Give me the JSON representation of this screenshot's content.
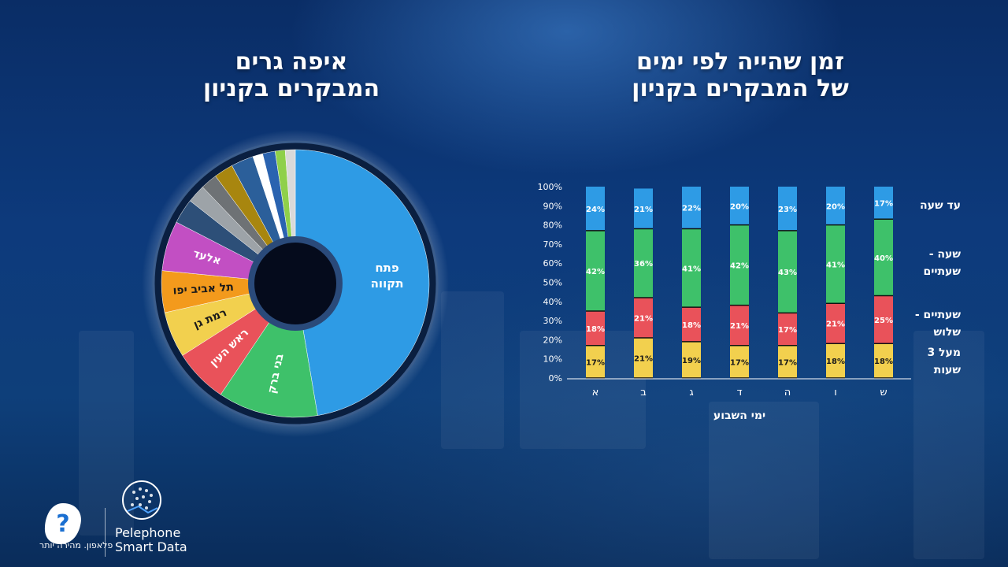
{
  "left_panel": {
    "title_line1": "איפה גרים",
    "title_line2": "המבקרים בקניון"
  },
  "right_panel": {
    "title_line1": "זמן שהייה לפי ימים",
    "title_line2": "של המבקרים בקניון"
  },
  "branding": {
    "tagline": "פלאפון. מהירה יותר",
    "sd_line1": "Pelephone",
    "sd_line2": "Smart Data"
  },
  "chart_data": [
    {
      "type": "pie",
      "title": "איפה גרים המבקרים בקניון",
      "donut": true,
      "slices": [
        {
          "label": "פתח תקווה",
          "value": 47,
          "color": "#2e9be5"
        },
        {
          "label": "בני ברק",
          "value": 12,
          "color": "#3ec16a"
        },
        {
          "label": "ראש העין",
          "value": 6.5,
          "color": "#e9525a"
        },
        {
          "label": "רמת גן",
          "value": 5.5,
          "color": "#f2d04e"
        },
        {
          "label": "תל אביב יפו",
          "value": 5,
          "color": "#f39a1c"
        },
        {
          "label": "אלעד",
          "value": 6,
          "color": "#c24fc3"
        },
        {
          "label": "",
          "value": 3,
          "color": "#2d4f78"
        },
        {
          "label": "",
          "value": 2.2,
          "color": "#9da3a8"
        },
        {
          "label": "",
          "value": 2,
          "color": "#6e7275"
        },
        {
          "label": "",
          "value": 2.3,
          "color": "#a8860f"
        },
        {
          "label": "",
          "value": 2.7,
          "color": "#2b5f9a"
        },
        {
          "label": "",
          "value": 1.2,
          "color": "#ffffff"
        },
        {
          "label": "",
          "value": 1.5,
          "color": "#2a63b0"
        },
        {
          "label": "",
          "value": 1.2,
          "color": "#8fd04a"
        },
        {
          "label": "",
          "value": 1.2,
          "color": "#d9d9d9"
        }
      ]
    },
    {
      "type": "bar",
      "stacked": true,
      "title": "זמן שהייה לפי ימים של המבקרים בקניון",
      "xlabel": "ימי השבוע",
      "ylabel": "",
      "ylim": [
        0,
        100
      ],
      "yticks": [
        "0%",
        "10%",
        "20%",
        "30%",
        "40%",
        "50%",
        "60%",
        "70%",
        "80%",
        "90%",
        "100%"
      ],
      "categories": [
        "א",
        "ב",
        "ג",
        "ד",
        "ה",
        "ו",
        "ש"
      ],
      "series": [
        {
          "name": "מעל 3 שעות",
          "color": "#f2d04e",
          "values": [
            17,
            21,
            19,
            17,
            17,
            18,
            18
          ],
          "labels": [
            "17%",
            "21%",
            "19%",
            "17%",
            "17%",
            "18%",
            "18%"
          ]
        },
        {
          "name": "שעתיים - שלוש",
          "color": "#e9525a",
          "values": [
            18,
            21,
            18,
            21,
            17,
            21,
            25
          ],
          "labels": [
            "18%",
            "21%",
            "18%",
            "21%",
            "17%",
            "21%",
            "25%"
          ]
        },
        {
          "name": "שעה - שעתיים",
          "color": "#3ec16a",
          "values": [
            42,
            36,
            41,
            42,
            43,
            41,
            40
          ],
          "labels": [
            "42%",
            "36%",
            "41%",
            "42%",
            "43%",
            "41%",
            "40%"
          ]
        },
        {
          "name": "עד שעה",
          "color": "#2e9be5",
          "values": [
            24,
            21,
            22,
            20,
            23,
            20,
            17
          ],
          "labels": [
            "24%",
            "21%",
            "22%",
            "20%",
            "23%",
            "20%",
            "17%"
          ]
        }
      ],
      "legend_lines": [
        [
          "עד שעה"
        ],
        [
          "שעה -",
          "שעתיים"
        ],
        [
          "שעתיים -",
          "שלוש"
        ],
        [
          "מעל 3",
          "שעות"
        ]
      ]
    }
  ]
}
